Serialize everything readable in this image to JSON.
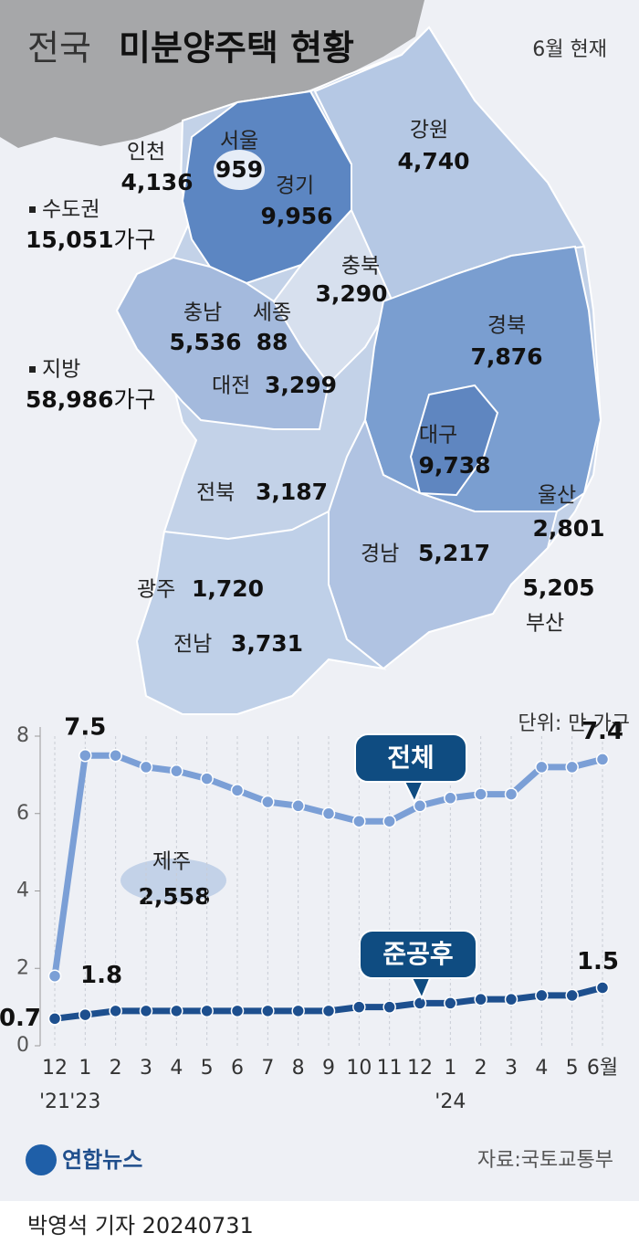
{
  "header": {
    "title_prefix": "전국",
    "title_main": "미분양주택 현황",
    "as_of": "6월 현재"
  },
  "map": {
    "regions": [
      {
        "name": "서울",
        "count": "959"
      },
      {
        "name": "인천",
        "count": "4,136"
      },
      {
        "name": "경기",
        "count": "9,956"
      },
      {
        "name": "강원",
        "count": "4,740"
      },
      {
        "name": "충북",
        "count": "3,290"
      },
      {
        "name": "충남",
        "count": "5,536"
      },
      {
        "name": "세종",
        "count": "88"
      },
      {
        "name": "대전",
        "count": "3,299"
      },
      {
        "name": "경북",
        "count": "7,876"
      },
      {
        "name": "대구",
        "count": "9,738"
      },
      {
        "name": "울산",
        "count": "2,801"
      },
      {
        "name": "전북",
        "count": "3,187"
      },
      {
        "name": "경남",
        "count": "5,217"
      },
      {
        "name": "부산",
        "count": "5,205"
      },
      {
        "name": "광주",
        "count": "1,720"
      },
      {
        "name": "전남",
        "count": "3,731"
      },
      {
        "name": "제주",
        "count": "2,558"
      }
    ],
    "summary": [
      {
        "label": "수도권",
        "count": "15,051",
        "unit": "가구"
      },
      {
        "label": "지방",
        "count": "58,986",
        "unit": "가구"
      }
    ]
  },
  "chart_data": {
    "type": "line",
    "unit_note": "단위: 만 가구",
    "categories": [
      "12",
      "1",
      "2",
      "3",
      "4",
      "5",
      "6",
      "7",
      "8",
      "9",
      "10",
      "11",
      "12",
      "1",
      "2",
      "3",
      "4",
      "5",
      "6월"
    ],
    "year_labels": [
      "'21",
      "'23",
      null,
      null,
      null,
      null,
      null,
      null,
      null,
      null,
      null,
      null,
      null,
      "'24",
      null,
      null,
      null,
      null,
      null
    ],
    "series": [
      {
        "name": "전체",
        "color": "#7b9fd6",
        "labeled": [
          0,
          1,
          18
        ],
        "values": [
          1.8,
          7.5,
          7.5,
          7.2,
          7.1,
          6.9,
          6.6,
          6.3,
          6.2,
          6.0,
          5.8,
          5.8,
          6.2,
          6.4,
          6.5,
          6.5,
          7.2,
          7.2,
          7.4
        ]
      },
      {
        "name": "준공후",
        "color": "#1d4f8e",
        "labeled": [
          0,
          18
        ],
        "values": [
          0.7,
          0.8,
          0.9,
          0.9,
          0.9,
          0.9,
          0.9,
          0.9,
          0.9,
          0.9,
          1.0,
          1.0,
          1.1,
          1.1,
          1.2,
          1.2,
          1.3,
          1.3,
          1.5
        ]
      }
    ],
    "ylim": [
      0,
      8
    ],
    "yticks": [
      0,
      2,
      4,
      6,
      8
    ],
    "grid": true
  },
  "footer": {
    "agency": "연합뉴스",
    "source": "자료:국토교통부",
    "byline": "박영석 기자 20240731"
  }
}
